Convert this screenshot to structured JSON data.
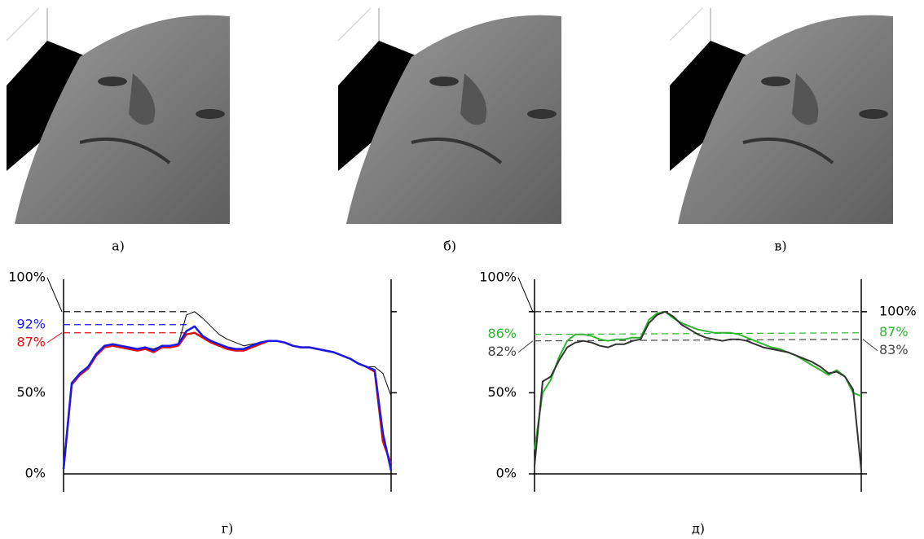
{
  "images": [
    {
      "caption": "а)"
    },
    {
      "caption": "б)"
    },
    {
      "caption": "в)"
    }
  ],
  "chart_data": [
    {
      "type": "line",
      "caption": "г)",
      "ylim": [
        0,
        120
      ],
      "yticks": [
        {
          "value": 0,
          "label": "0%"
        },
        {
          "value": 50,
          "label": "50%"
        },
        {
          "value": 100,
          "label": "100%"
        }
      ],
      "series": [
        {
          "color": "#000000",
          "width": 1,
          "values": [
            3,
            56,
            62,
            66,
            74,
            79,
            80,
            79,
            78,
            77,
            78,
            77,
            79,
            79,
            80,
            98,
            100,
            96,
            91,
            86,
            83,
            81,
            79,
            80,
            81,
            82,
            82,
            81,
            79,
            78,
            78,
            77,
            76,
            75,
            73,
            71,
            68,
            66,
            66,
            62,
            48
          ]
        },
        {
          "color": "#dd1111",
          "width": 2.5,
          "values": [
            3,
            55,
            61,
            65,
            73,
            78,
            79,
            78,
            77,
            76,
            77,
            75,
            78,
            78,
            79,
            86,
            87,
            84,
            81,
            79,
            77,
            76,
            76,
            78,
            80,
            82,
            82,
            81,
            79,
            78,
            78,
            77,
            76,
            75,
            73,
            71,
            68,
            66,
            63,
            20,
            6
          ]
        },
        {
          "color": "#1a1ae6",
          "width": 2.5,
          "values": [
            3,
            56,
            62,
            66,
            74,
            79,
            80,
            79,
            78,
            77,
            78,
            76,
            79,
            79,
            80,
            88,
            91,
            85,
            82,
            80,
            78,
            77,
            77,
            79,
            81,
            82,
            82,
            81,
            79,
            78,
            78,
            77,
            76,
            75,
            73,
            71,
            68,
            66,
            64,
            25,
            2
          ]
        }
      ],
      "references": [
        {
          "color": "#000000",
          "left": {
            "value": 100
          }
        },
        {
          "color": "#1a1ae6",
          "left": {
            "value": 92,
            "label": "92%"
          }
        },
        {
          "color": "#dd1111",
          "left": {
            "value": 87,
            "label": "87%"
          }
        }
      ]
    },
    {
      "type": "line",
      "caption": "д)",
      "ylim": [
        0,
        120
      ],
      "yticks": [
        {
          "value": 0,
          "label": "0%"
        },
        {
          "value": 50,
          "label": "50%"
        },
        {
          "value": 100,
          "label": "100%"
        }
      ],
      "series": [
        {
          "color": "#2fb52f",
          "width": 2,
          "values": [
            15,
            50,
            58,
            72,
            82,
            86,
            86,
            85,
            83,
            82,
            83,
            83,
            84,
            84,
            95,
            99,
            100,
            96,
            93,
            91,
            89,
            88,
            87,
            87,
            87,
            86,
            84,
            82,
            80,
            78,
            77,
            75,
            73,
            70,
            67,
            64,
            61,
            64,
            60,
            50,
            48
          ]
        },
        {
          "color": "#333333",
          "width": 2,
          "values": [
            5,
            57,
            60,
            70,
            78,
            81,
            82,
            81,
            79,
            78,
            80,
            80,
            82,
            83,
            93,
            98,
            100,
            97,
            92,
            89,
            86,
            84,
            83,
            82,
            83,
            83,
            82,
            80,
            78,
            77,
            76,
            75,
            73,
            71,
            69,
            66,
            62,
            63,
            60,
            52,
            2
          ]
        }
      ],
      "references": [
        {
          "color": "#000000",
          "left": {
            "value": 100
          },
          "right": {
            "value": 100,
            "label": "100%"
          }
        },
        {
          "color": "#2fb52f",
          "left": {
            "value": 86,
            "label": "86%"
          },
          "right": {
            "value": 87,
            "label": "87%"
          }
        },
        {
          "color": "#444444",
          "left": {
            "value": 82,
            "label": "82%"
          },
          "right": {
            "value": 83,
            "label": "83%"
          }
        }
      ]
    }
  ]
}
